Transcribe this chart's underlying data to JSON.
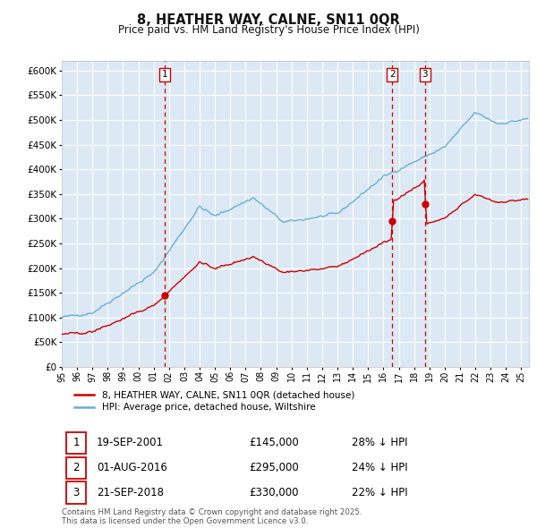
{
  "title": "8, HEATHER WAY, CALNE, SN11 0QR",
  "subtitle": "Price paid vs. HM Land Registry's House Price Index (HPI)",
  "legend_property": "8, HEATHER WAY, CALNE, SN11 0QR (detached house)",
  "legend_hpi": "HPI: Average price, detached house, Wiltshire",
  "footer": "Contains HM Land Registry data © Crown copyright and database right 2025.\nThis data is licensed under the Open Government Licence v3.0.",
  "transactions": [
    {
      "num": 1,
      "date": "19-SEP-2001",
      "price": 145000,
      "pct": "28% ↓ HPI",
      "date_x": 2001.72
    },
    {
      "num": 2,
      "date": "01-AUG-2016",
      "price": 295000,
      "pct": "24% ↓ HPI",
      "date_x": 2016.58
    },
    {
      "num": 3,
      "date": "21-SEP-2018",
      "price": 330000,
      "pct": "22% ↓ HPI",
      "date_x": 2018.72
    }
  ],
  "ylim": [
    0,
    620000
  ],
  "xlim_start": 1995.0,
  "xlim_end": 2025.5,
  "fig_bg_color": "#f0f0f0",
  "plot_bg_color": "#dce9f5",
  "grid_color": "#ffffff",
  "hpi_color": "#6aaed6",
  "price_color": "#cc0000",
  "vline_color": "#cc0000",
  "marker_color": "#cc0000",
  "white": "#ffffff"
}
